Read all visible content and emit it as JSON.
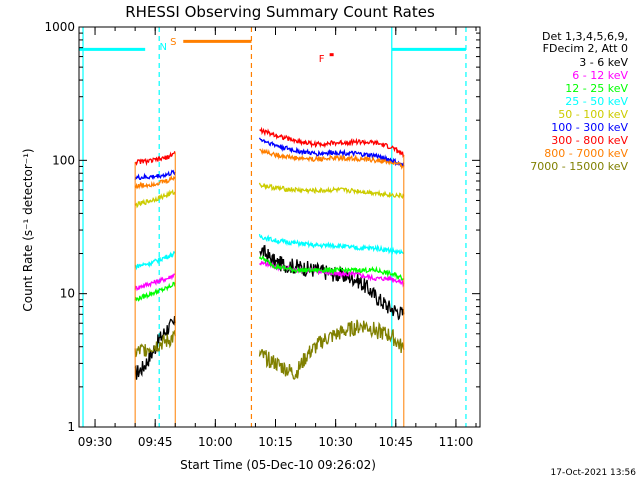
{
  "chart_data": {
    "type": "line",
    "title": "RHESSI Observing Summary Count Rates",
    "xlabel": "Start Time (05-Dec-10 09:26:02)",
    "ylabel": "Count Rate (s⁻¹ detector⁻¹)",
    "y_scale": "log",
    "ylim": [
      1,
      1000
    ],
    "xlim": [
      "09:26",
      "11:06"
    ],
    "x_ticks": [
      "09:30",
      "09:45",
      "10:00",
      "10:15",
      "10:30",
      "10:45",
      "11:00"
    ],
    "y_ticks": [
      "1",
      "10",
      "100",
      "1000"
    ],
    "grid": false,
    "legend_position": "top-right",
    "legend_header": [
      "Det 1,3,4,5,6,9,",
      "FDecim 2, Att 0"
    ],
    "series": [
      {
        "name": "3 - 6 keV",
        "color": "#000000",
        "points": [
          [
            "09:40",
            2.5
          ],
          [
            "09:42",
            2.8
          ],
          [
            "09:44",
            3.5
          ],
          [
            "09:46",
            4.5
          ],
          [
            "09:48",
            5.5
          ],
          [
            "09:50",
            6
          ],
          [
            "10:11",
            22
          ],
          [
            "10:15",
            17
          ],
          [
            "10:20",
            16
          ],
          [
            "10:25",
            15
          ],
          [
            "10:30",
            14
          ],
          [
            "10:35",
            13
          ],
          [
            "10:38",
            11
          ],
          [
            "10:40",
            9.5
          ],
          [
            "10:43",
            8
          ],
          [
            "10:47",
            7
          ]
        ]
      },
      {
        "name": "6 - 12 keV",
        "color": "#ff00ff",
        "points": [
          [
            "09:40",
            11
          ],
          [
            "09:44",
            12
          ],
          [
            "09:48",
            13
          ],
          [
            "09:50",
            14
          ],
          [
            "10:11",
            17
          ],
          [
            "10:15",
            16
          ],
          [
            "10:20",
            15
          ],
          [
            "10:25",
            15
          ],
          [
            "10:30",
            14
          ],
          [
            "10:35",
            14
          ],
          [
            "10:40",
            13
          ],
          [
            "10:44",
            13
          ],
          [
            "10:47",
            12
          ]
        ]
      },
      {
        "name": "12 - 25 keV",
        "color": "#00ff00",
        "points": [
          [
            "09:40",
            9
          ],
          [
            "09:44",
            10
          ],
          [
            "09:48",
            11
          ],
          [
            "09:50",
            12
          ],
          [
            "10:11",
            19
          ],
          [
            "10:15",
            16
          ],
          [
            "10:20",
            15
          ],
          [
            "10:25",
            15
          ],
          [
            "10:30",
            15
          ],
          [
            "10:35",
            15
          ],
          [
            "10:40",
            15
          ],
          [
            "10:44",
            14
          ],
          [
            "10:47",
            13
          ]
        ]
      },
      {
        "name": "25 - 50 keV",
        "color": "#00ffff",
        "points": [
          [
            "09:40",
            16
          ],
          [
            "09:44",
            17
          ],
          [
            "09:48",
            19
          ],
          [
            "09:50",
            20
          ],
          [
            "10:11",
            27
          ],
          [
            "10:15",
            25
          ],
          [
            "10:20",
            24
          ],
          [
            "10:25",
            23
          ],
          [
            "10:30",
            23
          ],
          [
            "10:35",
            22
          ],
          [
            "10:40",
            22
          ],
          [
            "10:44",
            21
          ],
          [
            "10:47",
            20
          ]
        ]
      },
      {
        "name": "50 - 100 keV",
        "color": "#cccc00",
        "points": [
          [
            "09:40",
            46
          ],
          [
            "09:44",
            50
          ],
          [
            "09:48",
            55
          ],
          [
            "09:50",
            58
          ],
          [
            "10:11",
            66
          ],
          [
            "10:15",
            62
          ],
          [
            "10:20",
            60
          ],
          [
            "10:25",
            59
          ],
          [
            "10:30",
            60
          ],
          [
            "10:35",
            59
          ],
          [
            "10:40",
            57
          ],
          [
            "10:44",
            55
          ],
          [
            "10:47",
            54
          ]
        ]
      },
      {
        "name": "100 - 300 keV",
        "color": "#0000ff",
        "points": [
          [
            "09:40",
            74
          ],
          [
            "09:44",
            75
          ],
          [
            "09:48",
            78
          ],
          [
            "09:50",
            82
          ],
          [
            "10:11",
            145
          ],
          [
            "10:15",
            130
          ],
          [
            "10:20",
            118
          ],
          [
            "10:25",
            112
          ],
          [
            "10:30",
            115
          ],
          [
            "10:35",
            112
          ],
          [
            "10:40",
            108
          ],
          [
            "10:44",
            100
          ],
          [
            "10:47",
            90
          ]
        ]
      },
      {
        "name": "300 - 800 keV",
        "color": "#ff0000",
        "points": [
          [
            "09:40",
            97
          ],
          [
            "09:44",
            99
          ],
          [
            "09:48",
            105
          ],
          [
            "09:50",
            115
          ],
          [
            "10:11",
            168
          ],
          [
            "10:15",
            155
          ],
          [
            "10:20",
            140
          ],
          [
            "10:25",
            132
          ],
          [
            "10:30",
            135
          ],
          [
            "10:35",
            138
          ],
          [
            "10:40",
            135
          ],
          [
            "10:44",
            125
          ],
          [
            "10:47",
            110
          ]
        ]
      },
      {
        "name": "800 - 7000 keV",
        "color": "#ff7f00",
        "points": [
          [
            "09:40",
            64
          ],
          [
            "09:44",
            66
          ],
          [
            "09:48",
            70
          ],
          [
            "09:50",
            75
          ],
          [
            "10:11",
            120
          ],
          [
            "10:15",
            110
          ],
          [
            "10:20",
            104
          ],
          [
            "10:25",
            102
          ],
          [
            "10:30",
            104
          ],
          [
            "10:35",
            103
          ],
          [
            "10:40",
            100
          ],
          [
            "10:44",
            96
          ],
          [
            "10:47",
            90
          ]
        ]
      },
      {
        "name": "7000 - 15000 keV",
        "color": "#808000",
        "points": [
          [
            "09:40",
            3.6
          ],
          [
            "09:44",
            4
          ],
          [
            "09:48",
            4.4
          ],
          [
            "09:50",
            4.8
          ],
          [
            "10:11",
            3.5
          ],
          [
            "10:15",
            3
          ],
          [
            "10:20",
            2.5
          ],
          [
            "10:23",
            3.5
          ],
          [
            "10:27",
            4.5
          ],
          [
            "10:32",
            5.2
          ],
          [
            "10:37",
            5.8
          ],
          [
            "10:40",
            5.3
          ],
          [
            "10:44",
            4.8
          ],
          [
            "10:47",
            3.8
          ]
        ]
      }
    ],
    "flag_bars": [
      {
        "label": "N",
        "color": "#00ffff",
        "value": 680
      },
      {
        "label": "S",
        "color": "#ff7f00",
        "value": 780
      },
      {
        "label": "F",
        "color": "#ff0000",
        "value": 620
      }
    ],
    "flag_segments": [
      {
        "series": "N",
        "start": "09:26",
        "end": "09:42:30"
      },
      {
        "series": "N",
        "start": "10:44",
        "end": "11:02:30"
      },
      {
        "series": "S",
        "start": "09:52",
        "end": "10:09"
      },
      {
        "series": "F",
        "start": "10:28:30",
        "end": "10:29:30"
      }
    ],
    "vertical_markers": [
      {
        "time": "09:27",
        "color": "#00ffff",
        "style": "solid"
      },
      {
        "time": "09:46",
        "color": "#00ffff",
        "style": "dashed"
      },
      {
        "time": "10:09",
        "color": "#ff7f00",
        "style": "dashed"
      },
      {
        "time": "10:44",
        "color": "#00ffff",
        "style": "solid"
      },
      {
        "time": "11:02:30",
        "color": "#00ffff",
        "style": "dashed"
      }
    ],
    "data_gaps": [
      {
        "start": "09:26",
        "end": "09:42:00"
      },
      {
        "start": "09:50",
        "end": "10:12"
      },
      {
        "start": "10:47",
        "end": "11:06"
      }
    ]
  },
  "footer": {
    "timestamp": "17-Oct-2021 13:56"
  }
}
